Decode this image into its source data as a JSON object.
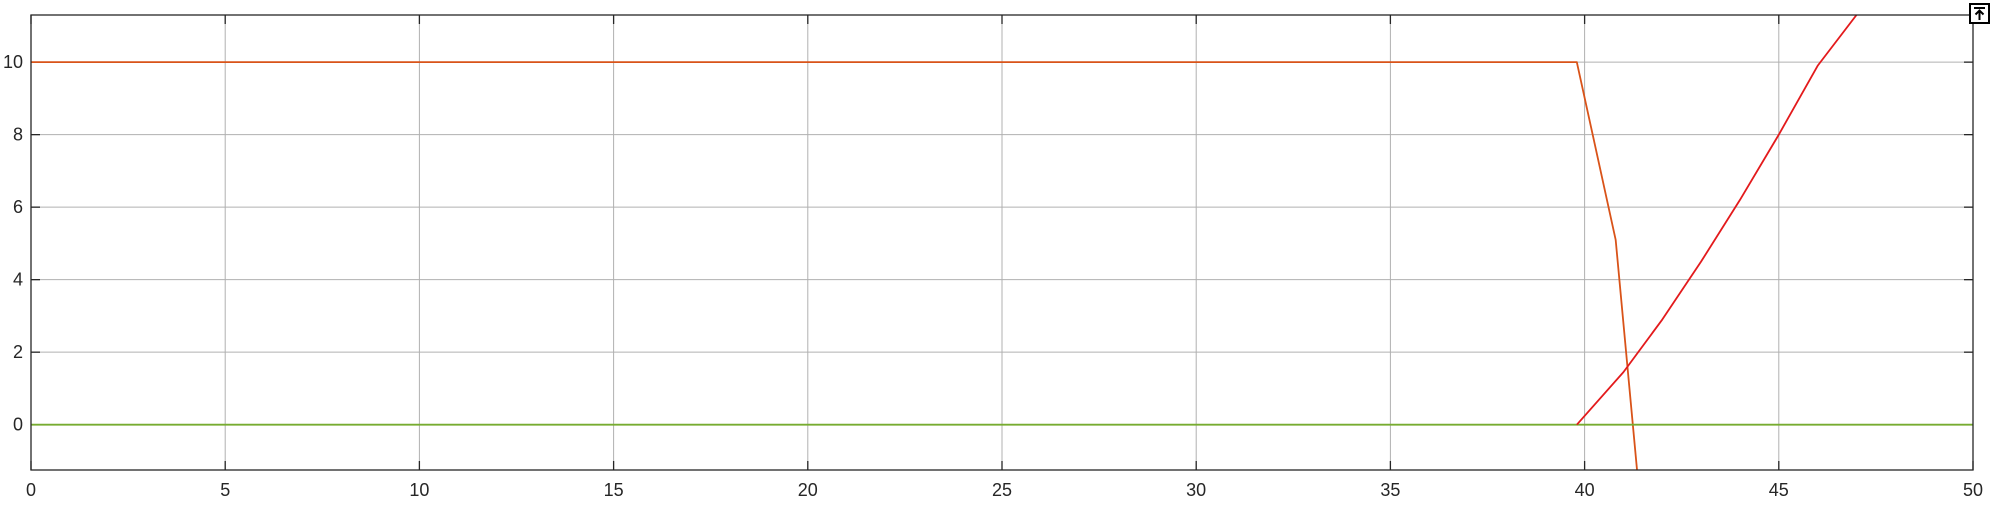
{
  "chart_data": {
    "type": "line",
    "title": "",
    "xlabel": "",
    "ylabel": "",
    "xlim": [
      0,
      50
    ],
    "ylim": [
      -1.25,
      11.3
    ],
    "x_ticks": [
      0,
      5,
      10,
      15,
      20,
      25,
      30,
      35,
      40,
      45,
      50
    ],
    "y_ticks": [
      0,
      2,
      4,
      6,
      8,
      10
    ],
    "grid": true,
    "series": [
      {
        "color": "#d95319",
        "x": [
          0,
          39.8,
          40.8,
          41.35
        ],
        "y": [
          10,
          10,
          5.1,
          -1.25
        ]
      },
      {
        "color": "#77ac30",
        "x": [
          0,
          50
        ],
        "y": [
          0,
          0
        ]
      },
      {
        "color": "#e31a1c",
        "x": [
          39.8,
          41.0,
          42.0,
          43.0,
          44.0,
          45.0,
          46.0,
          47.0
        ],
        "y": [
          0,
          1.45,
          2.9,
          4.5,
          6.2,
          8.0,
          9.9,
          11.3
        ]
      }
    ]
  },
  "toolbar": {
    "export_icon": "export-arrow-icon"
  }
}
